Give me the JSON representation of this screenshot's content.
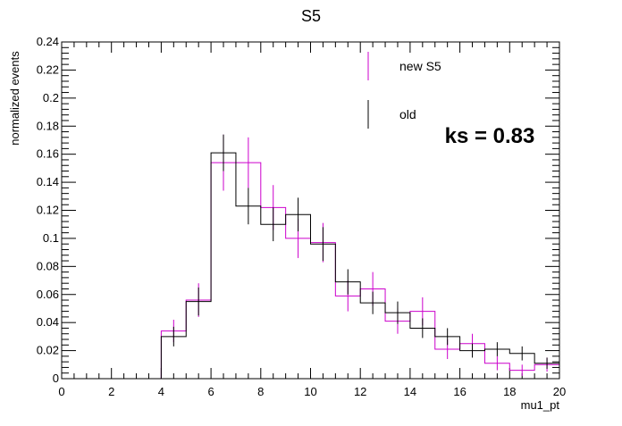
{
  "chart_data": {
    "type": "histogram",
    "title": "S5",
    "xlabel": "mu1_pt",
    "ylabel": "normalized events",
    "xlim": [
      0,
      20
    ],
    "ylim": [
      0,
      0.24
    ],
    "x_ticks": [
      0,
      2,
      4,
      6,
      8,
      10,
      12,
      14,
      16,
      18,
      20
    ],
    "x_tick_labels": [
      "0",
      "2",
      "4",
      "6",
      "8",
      "10",
      "12",
      "14",
      "16",
      "18",
      "20"
    ],
    "y_ticks": [
      0,
      0.02,
      0.04,
      0.06,
      0.08,
      0.1,
      0.12,
      0.14,
      0.16,
      0.18,
      0.2,
      0.22,
      0.24
    ],
    "y_tick_labels": [
      "0",
      "0.02",
      "0.04",
      "0.06",
      "0.08",
      "0.1",
      "0.12",
      "0.14",
      "0.16",
      "0.18",
      "0.2",
      "0.22",
      "0.24"
    ],
    "bin_edges": [
      0,
      1,
      2,
      3,
      4,
      5,
      6,
      7,
      8,
      9,
      10,
      11,
      12,
      13,
      14,
      15,
      16,
      17,
      18,
      19,
      20
    ],
    "series": [
      {
        "name": "new S5",
        "color": "#cc00cc",
        "values": [
          0,
          0,
          0,
          0,
          0.034,
          0.056,
          0.154,
          0.154,
          0.122,
          0.1,
          0.097,
          0.059,
          0.064,
          0.041,
          0.048,
          0.021,
          0.025,
          0.011,
          0.006,
          0.01
        ],
        "errors": [
          0,
          0,
          0,
          0,
          0.008,
          0.012,
          0.02,
          0.018,
          0.016,
          0.014,
          0.014,
          0.011,
          0.012,
          0.009,
          0.01,
          0.007,
          0.007,
          0.005,
          0.004,
          0.005
        ]
      },
      {
        "name": "old",
        "color": "#000000",
        "values": [
          0,
          0,
          0,
          0,
          0.03,
          0.055,
          0.161,
          0.123,
          0.11,
          0.117,
          0.096,
          0.069,
          0.054,
          0.047,
          0.036,
          0.03,
          0.02,
          0.021,
          0.018,
          0.011
        ],
        "errors": [
          0,
          0,
          0,
          0,
          0.007,
          0.01,
          0.013,
          0.013,
          0.012,
          0.012,
          0.012,
          0.009,
          0.008,
          0.008,
          0.007,
          0.006,
          0.005,
          0.005,
          0.005,
          0.004
        ]
      }
    ],
    "legend": {
      "position": "top-right",
      "entries": [
        "new S5",
        "old"
      ]
    },
    "annotation": "ks = 0.83",
    "grid": false
  }
}
